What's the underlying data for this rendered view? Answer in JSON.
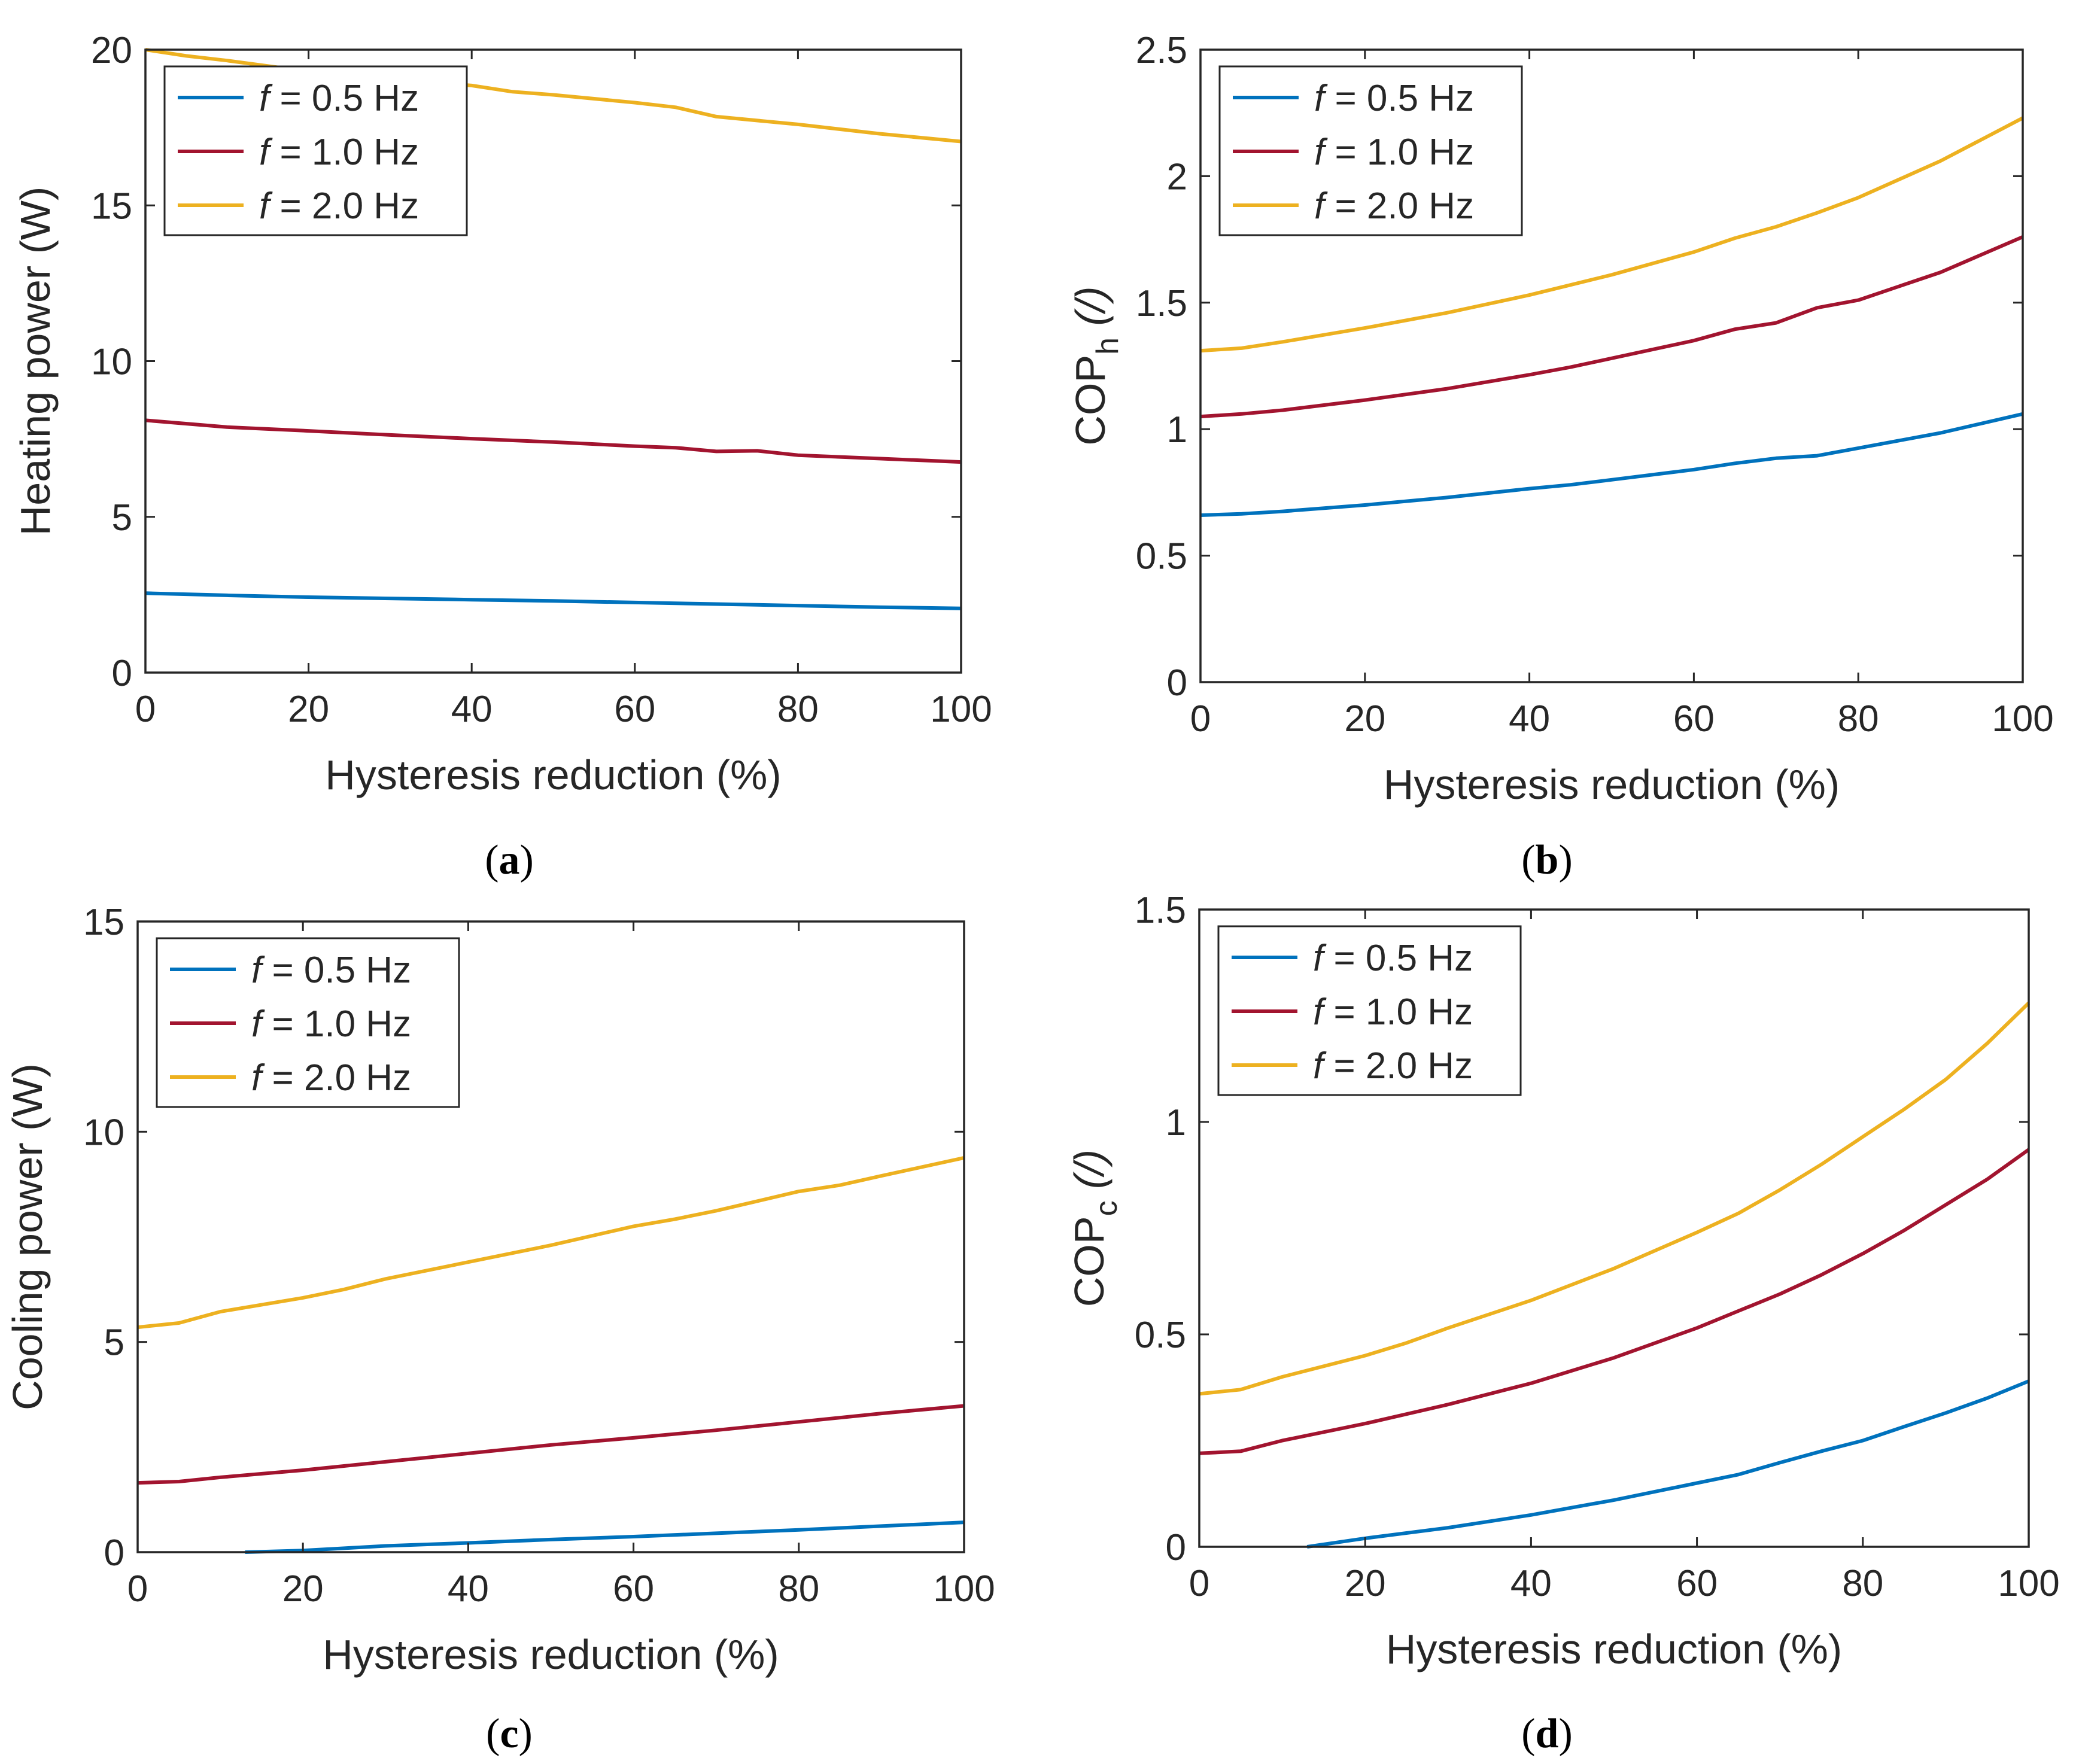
{
  "chart_data": [
    {
      "id": "a",
      "type": "line",
      "caption": "a",
      "xlabel": "Hysteresis reduction (%)",
      "ylabel": "Heating power (W)",
      "ylabel_sub": "",
      "ylabel_tail": "",
      "xlim": [
        0,
        100
      ],
      "ylim": [
        0,
        20
      ],
      "xticks": [
        "0",
        "20",
        "40",
        "60",
        "80",
        "100"
      ],
      "yticks": [
        "0",
        "5",
        "10",
        "15",
        "20"
      ],
      "grid": false,
      "legend_position": "top-left",
      "series": [
        {
          "name": "f",
          "name_rest": " = 0.5 Hz",
          "color": "#0072BD",
          "x": [
            0,
            10,
            20,
            30,
            40,
            50,
            60,
            70,
            80,
            90,
            100
          ],
          "y": [
            2.55,
            2.48,
            2.42,
            2.38,
            2.34,
            2.3,
            2.25,
            2.2,
            2.15,
            2.1,
            2.06
          ]
        },
        {
          "name": "f",
          "name_rest": " = 1.0 Hz",
          "color": "#A2142F",
          "x": [
            0,
            10,
            20,
            30,
            40,
            50,
            60,
            65,
            70,
            75,
            80,
            90,
            100
          ],
          "y": [
            8.1,
            7.88,
            7.76,
            7.63,
            7.51,
            7.4,
            7.27,
            7.22,
            7.1,
            7.12,
            6.98,
            6.87,
            6.76
          ]
        },
        {
          "name": "f",
          "name_rest": " = 2.0 Hz",
          "color": "#EDB120",
          "x": [
            0,
            5,
            10,
            20,
            30,
            40,
            45,
            50,
            60,
            65,
            70,
            80,
            90,
            100
          ],
          "y": [
            20.0,
            19.8,
            19.65,
            19.3,
            19.05,
            18.85,
            18.65,
            18.55,
            18.3,
            18.15,
            17.85,
            17.6,
            17.3,
            17.05
          ]
        }
      ]
    },
    {
      "id": "b",
      "type": "line",
      "caption": "b",
      "xlabel": "Hysteresis reduction (%)",
      "ylabel": "COP",
      "ylabel_sub": "h",
      "ylabel_tail": " (/)",
      "xlim": [
        0,
        100
      ],
      "ylim": [
        0,
        2.5
      ],
      "xticks": [
        "0",
        "20",
        "40",
        "60",
        "80",
        "100"
      ],
      "yticks": [
        "0",
        "0.5",
        "1",
        "1.5",
        "2",
        "2.5"
      ],
      "grid": false,
      "legend_position": "top-left",
      "series": [
        {
          "name": "f",
          "name_rest": " = 0.5 Hz",
          "color": "#0072BD",
          "x": [
            0,
            5,
            10,
            20,
            30,
            40,
            45,
            50,
            60,
            65,
            70,
            75,
            80,
            90,
            100
          ],
          "y": [
            0.66,
            0.665,
            0.675,
            0.7,
            0.73,
            0.765,
            0.78,
            0.8,
            0.84,
            0.865,
            0.885,
            0.895,
            0.925,
            0.985,
            1.06
          ]
        },
        {
          "name": "f",
          "name_rest": " = 1.0 Hz",
          "color": "#A2142F",
          "x": [
            0,
            5,
            10,
            20,
            30,
            40,
            45,
            50,
            60,
            65,
            70,
            75,
            80,
            90,
            100
          ],
          "y": [
            1.05,
            1.06,
            1.075,
            1.115,
            1.16,
            1.215,
            1.245,
            1.28,
            1.35,
            1.395,
            1.42,
            1.48,
            1.51,
            1.62,
            1.76
          ]
        },
        {
          "name": "f",
          "name_rest": " = 2.0 Hz",
          "color": "#EDB120",
          "x": [
            0,
            5,
            10,
            20,
            30,
            40,
            45,
            50,
            60,
            65,
            70,
            75,
            80,
            90,
            100
          ],
          "y": [
            1.31,
            1.32,
            1.345,
            1.4,
            1.46,
            1.53,
            1.57,
            1.61,
            1.7,
            1.755,
            1.8,
            1.855,
            1.915,
            2.06,
            2.23
          ]
        }
      ]
    },
    {
      "id": "c",
      "type": "line",
      "caption": "c",
      "xlabel": "Hysteresis reduction (%)",
      "ylabel": "Cooling power (W)",
      "ylabel_sub": "",
      "ylabel_tail": "",
      "xlim": [
        0,
        100
      ],
      "ylim": [
        0,
        15
      ],
      "xticks": [
        "0",
        "20",
        "40",
        "60",
        "80",
        "100"
      ],
      "yticks": [
        "0",
        "5",
        "10",
        "15"
      ],
      "grid": false,
      "legend_position": "top-left",
      "series": [
        {
          "name": "f",
          "name_rest": " = 0.5 Hz",
          "color": "#0072BD",
          "x": [
            13,
            20,
            30,
            40,
            50,
            60,
            70,
            80,
            90,
            100
          ],
          "y": [
            0.0,
            0.04,
            0.15,
            0.22,
            0.3,
            0.37,
            0.45,
            0.53,
            0.62,
            0.71
          ]
        },
        {
          "name": "f",
          "name_rest": " = 1.0 Hz",
          "color": "#A2142F",
          "x": [
            0,
            5,
            10,
            20,
            30,
            40,
            50,
            60,
            70,
            80,
            90,
            100
          ],
          "y": [
            1.65,
            1.68,
            1.78,
            1.95,
            2.15,
            2.35,
            2.55,
            2.72,
            2.9,
            3.1,
            3.3,
            3.48
          ]
        },
        {
          "name": "f",
          "name_rest": " = 2.0 Hz",
          "color": "#EDB120",
          "x": [
            0,
            5,
            10,
            20,
            25,
            30,
            40,
            50,
            60,
            65,
            70,
            75,
            80,
            85,
            90,
            100
          ],
          "y": [
            5.35,
            5.45,
            5.72,
            6.05,
            6.25,
            6.5,
            6.9,
            7.3,
            7.75,
            7.92,
            8.12,
            8.35,
            8.58,
            8.73,
            8.95,
            9.38
          ]
        }
      ]
    },
    {
      "id": "d",
      "type": "line",
      "caption": "d",
      "xlabel": "Hysteresis reduction (%)",
      "ylabel": "COP",
      "ylabel_sub": "c",
      "ylabel_tail": " (/)",
      "xlim": [
        0,
        100
      ],
      "ylim": [
        0,
        1.5
      ],
      "xticks": [
        "0",
        "20",
        "40",
        "60",
        "80",
        "100"
      ],
      "yticks": [
        "0",
        "0.5",
        "1",
        "1.5"
      ],
      "grid": false,
      "legend_position": "top-left",
      "series": [
        {
          "name": "f",
          "name_rest": " = 0.5 Hz",
          "color": "#0072BD",
          "x": [
            13,
            20,
            30,
            40,
            50,
            60,
            65,
            70,
            75,
            80,
            85,
            90,
            95,
            100
          ],
          "y": [
            0.0,
            0.02,
            0.045,
            0.075,
            0.11,
            0.15,
            0.17,
            0.198,
            0.225,
            0.25,
            0.283,
            0.315,
            0.35,
            0.39
          ]
        },
        {
          "name": "f",
          "name_rest": " = 1.0 Hz",
          "color": "#A2142F",
          "x": [
            0,
            5,
            10,
            20,
            30,
            40,
            50,
            60,
            65,
            70,
            75,
            80,
            85,
            90,
            95,
            100
          ],
          "y": [
            0.22,
            0.225,
            0.25,
            0.29,
            0.335,
            0.385,
            0.445,
            0.515,
            0.555,
            0.595,
            0.64,
            0.69,
            0.745,
            0.805,
            0.865,
            0.935
          ]
        },
        {
          "name": "f",
          "name_rest": " = 2.0 Hz",
          "color": "#EDB120",
          "x": [
            0,
            5,
            10,
            20,
            25,
            30,
            40,
            50,
            60,
            65,
            70,
            75,
            80,
            85,
            90,
            95,
            100
          ],
          "y": [
            0.36,
            0.37,
            0.4,
            0.45,
            0.48,
            0.515,
            0.58,
            0.655,
            0.74,
            0.785,
            0.84,
            0.9,
            0.965,
            1.03,
            1.1,
            1.185,
            1.28
          ]
        }
      ]
    }
  ]
}
